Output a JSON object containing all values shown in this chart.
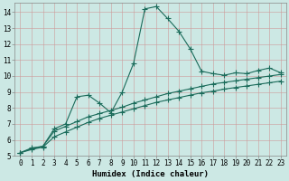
{
  "xlabel": "Humidex (Indice chaleur)",
  "bg_color": "#cce8e4",
  "grid_color": "#cc9999",
  "line_color": "#1a6b5a",
  "xlim": [
    -0.5,
    23.5
  ],
  "ylim": [
    5.0,
    14.6
  ],
  "xticks": [
    0,
    1,
    2,
    3,
    4,
    5,
    6,
    7,
    8,
    9,
    10,
    11,
    12,
    13,
    14,
    15,
    16,
    17,
    18,
    19,
    20,
    21,
    22,
    23
  ],
  "yticks": [
    5,
    6,
    7,
    8,
    9,
    10,
    11,
    12,
    13,
    14
  ],
  "line1_x": [
    0,
    1,
    2,
    3,
    4,
    5,
    6,
    7,
    8,
    9,
    10,
    11,
    12,
    13,
    14,
    15,
    16,
    17,
    18,
    19,
    20,
    21,
    22,
    23
  ],
  "line1_y": [
    5.2,
    5.5,
    5.6,
    6.7,
    7.0,
    8.7,
    8.8,
    8.3,
    7.7,
    9.0,
    10.8,
    14.2,
    14.35,
    13.6,
    12.8,
    11.7,
    10.3,
    10.15,
    10.05,
    10.2,
    10.15,
    10.35,
    10.5,
    10.2
  ],
  "line2_x": [
    0,
    1,
    2,
    3,
    4,
    5,
    6,
    7,
    8,
    9,
    10,
    11,
    12,
    13,
    14,
    15,
    16,
    17,
    18,
    19,
    20,
    21,
    22,
    23
  ],
  "line2_y": [
    5.2,
    5.45,
    5.6,
    6.55,
    6.85,
    7.15,
    7.45,
    7.65,
    7.85,
    8.05,
    8.3,
    8.5,
    8.7,
    8.9,
    9.05,
    9.2,
    9.35,
    9.5,
    9.6,
    9.7,
    9.8,
    9.9,
    10.0,
    10.1
  ],
  "line3_x": [
    0,
    1,
    2,
    3,
    4,
    5,
    6,
    7,
    8,
    9,
    10,
    11,
    12,
    13,
    14,
    15,
    16,
    17,
    18,
    19,
    20,
    21,
    22,
    23
  ],
  "line3_y": [
    5.2,
    5.4,
    5.55,
    6.2,
    6.5,
    6.8,
    7.1,
    7.35,
    7.55,
    7.75,
    7.95,
    8.15,
    8.35,
    8.5,
    8.65,
    8.8,
    8.95,
    9.05,
    9.18,
    9.28,
    9.38,
    9.48,
    9.58,
    9.68
  ]
}
